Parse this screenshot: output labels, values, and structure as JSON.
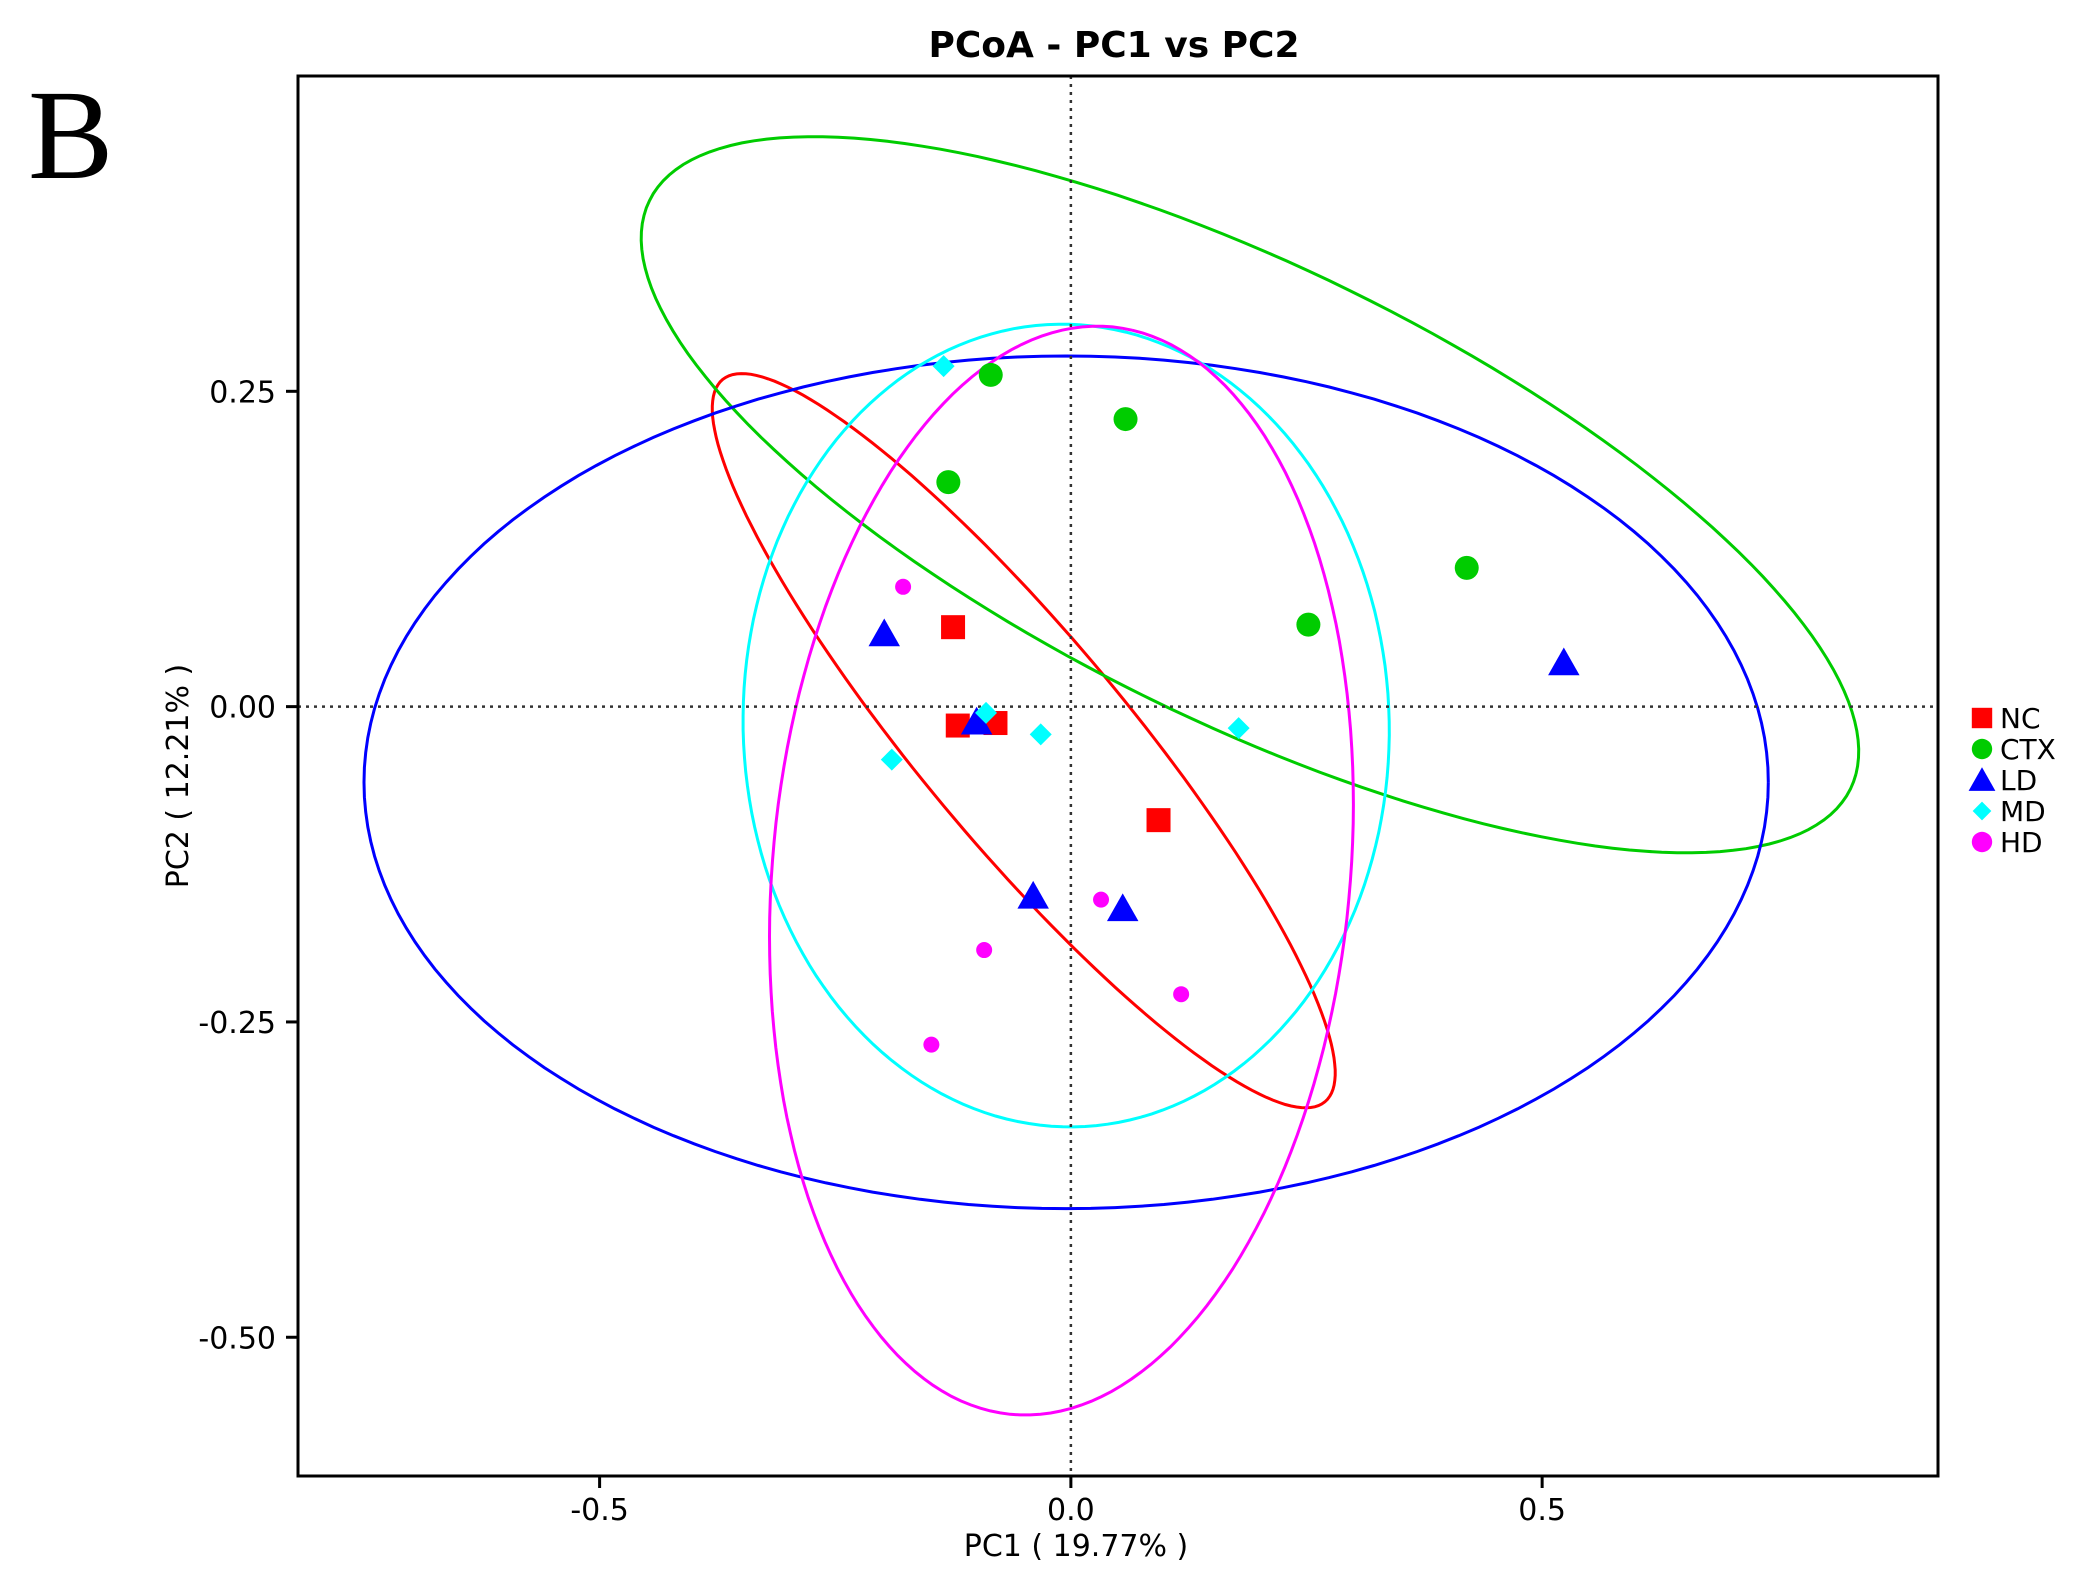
{
  "panel_label": "B",
  "chart_data": {
    "type": "scatter",
    "title": "PCoA - PC1 vs PC2",
    "xlabel": "PC1 ( 19.77% )",
    "ylabel": "PC2 ( 12.21% )",
    "xlim": [
      -0.82,
      0.92
    ],
    "ylim": [
      -0.61,
      0.5
    ],
    "x_ticks": [
      -0.5,
      0.0,
      0.5
    ],
    "x_tick_labels": [
      "-0.5",
      "0.0",
      "0.5"
    ],
    "y_ticks": [
      -0.5,
      -0.25,
      0.0,
      0.25
    ],
    "y_tick_labels": [
      "-0.50",
      "-0.25",
      "0.00",
      "0.25"
    ],
    "reference_lines": {
      "x": 0,
      "y": 0
    },
    "grid": false,
    "legend_position": "right",
    "series": [
      {
        "name": "NC",
        "color": "#ff0000",
        "marker": "square",
        "points": [
          [
            -0.125,
            0.063
          ],
          [
            -0.12,
            -0.015
          ],
          [
            -0.08,
            -0.013
          ],
          [
            0.093,
            -0.09
          ]
        ],
        "ellipse": {
          "center": [
            -0.05,
            -0.027
          ],
          "radii": [
            0.43,
            0.095
          ],
          "angle_deg": -41
        }
      },
      {
        "name": "CTX",
        "color": "#00cc00",
        "marker": "circle",
        "points": [
          [
            -0.085,
            0.263
          ],
          [
            0.058,
            0.228
          ],
          [
            -0.13,
            0.178
          ],
          [
            0.42,
            0.11
          ],
          [
            0.252,
            0.065
          ]
        ],
        "ellipse": {
          "center": [
            0.19,
            0.168
          ],
          "radii": [
            0.68,
            0.188
          ],
          "angle_deg": -19
        }
      },
      {
        "name": "LD",
        "color": "#0000ff",
        "marker": "triangle",
        "points": [
          [
            -0.198,
            0.058
          ],
          [
            -0.1,
            -0.012
          ],
          [
            0.523,
            0.035
          ],
          [
            -0.04,
            -0.15
          ],
          [
            0.055,
            -0.16
          ]
        ],
        "ellipse": {
          "center": [
            -0.005,
            -0.06
          ],
          "radii": [
            0.745,
            0.338
          ],
          "angle_deg": 0
        }
      },
      {
        "name": "MD",
        "color": "#00ffff",
        "marker": "diamond",
        "points": [
          [
            -0.135,
            0.27
          ],
          [
            -0.09,
            -0.005
          ],
          [
            -0.032,
            -0.022
          ],
          [
            0.178,
            -0.017
          ],
          [
            -0.19,
            -0.042
          ]
        ],
        "ellipse": {
          "center": [
            -0.005,
            -0.015
          ],
          "radii": [
            0.343,
            0.318
          ],
          "angle_deg": -5
        }
      },
      {
        "name": "HD",
        "color": "#ff00ff",
        "marker": "circle-small",
        "points": [
          [
            -0.178,
            0.095
          ],
          [
            0.032,
            -0.153
          ],
          [
            -0.092,
            -0.193
          ],
          [
            0.117,
            -0.228
          ],
          [
            -0.148,
            -0.268
          ]
        ],
        "ellipse": {
          "center": [
            -0.01,
            -0.13
          ],
          "radii": [
            0.435,
            0.305
          ],
          "angle_deg": 80
        }
      }
    ]
  }
}
